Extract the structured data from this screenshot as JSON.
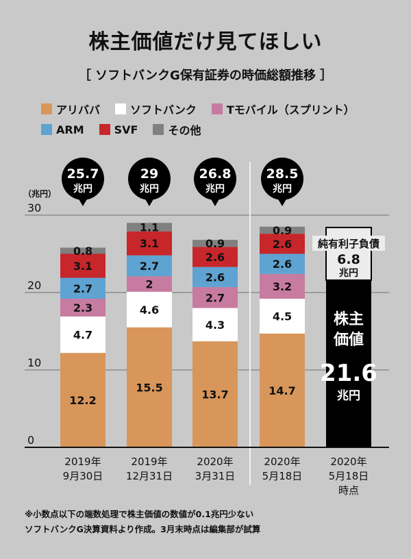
{
  "title": "株主価値だけ見てほしい",
  "subtitle": "［ ソフトバンクG保有証券の時価総額推移 ］",
  "legend": [
    {
      "label": "アリババ",
      "color": "#d9965a"
    },
    {
      "label": "ソフトバンク",
      "color": "#ffffff"
    },
    {
      "label": "Tモバイル（スプリント）",
      "color": "#c87ba0"
    },
    {
      "label": "ARM",
      "color": "#5ea3d2"
    },
    {
      "label": "SVF",
      "color": "#c7262b"
    },
    {
      "label": "その他",
      "color": "#808080"
    }
  ],
  "chart_data": {
    "type": "bar",
    "stacked": true,
    "ylabel": "（兆円）",
    "ylim": [
      0,
      30
    ],
    "yticks": [
      "0",
      "10",
      "20",
      "30"
    ],
    "categories": [
      [
        "2019年",
        "9月30日"
      ],
      [
        "2019年",
        "12月31日"
      ],
      [
        "2020年",
        "3月31日"
      ],
      [
        "2020年",
        "5月18日"
      ]
    ],
    "series": [
      {
        "name": "アリババ",
        "values": [
          12.2,
          15.5,
          13.7,
          14.7
        ]
      },
      {
        "name": "ソフトバンク",
        "values": [
          4.7,
          4.6,
          4.3,
          4.5
        ]
      },
      {
        "name": "Tモバイル（スプリント）",
        "values": [
          2.3,
          2,
          2.7,
          3.2
        ]
      },
      {
        "name": "ARM",
        "values": [
          2.7,
          2.7,
          2.6,
          2.6
        ]
      },
      {
        "name": "SVF",
        "values": [
          3.1,
          3.1,
          2.6,
          2.6
        ]
      },
      {
        "name": "その他",
        "values": [
          0.8,
          1.1,
          0.9,
          0.9
        ]
      }
    ],
    "value_labels": [
      [
        "12.2",
        "4.7",
        "2.3",
        "2.7",
        "3.1",
        "0.8"
      ],
      [
        "15.5",
        "4.6",
        "2",
        "2.7",
        "3.1",
        "1.1"
      ],
      [
        "13.7",
        "4.3",
        "2.7",
        "2.6",
        "2.6",
        "0.9"
      ],
      [
        "14.7",
        "4.5",
        "3.2",
        "2.6",
        "2.6",
        "0.9"
      ]
    ],
    "totals": [
      {
        "value": "25.7",
        "unit": "兆円"
      },
      {
        "value": "29",
        "unit": "兆円"
      },
      {
        "value": "26.8",
        "unit": "兆円"
      },
      {
        "value": "28.5",
        "unit": "兆円"
      }
    ],
    "extra_bar": {
      "category": [
        "2020年",
        "5月18日",
        "時点"
      ],
      "total": 28.4,
      "debt": {
        "label": "純有利子負債",
        "value": "6.8",
        "unit": "兆円",
        "amount": 6.8
      },
      "equity": {
        "label1": "株主",
        "label2": "価値",
        "value": "21.6",
        "unit": "兆円",
        "amount": 21.6
      }
    }
  },
  "footnote": [
    "※小数点以下の端数処理で株主価値の数値が0.1兆円少ない",
    "ソフトバンクG決算資料より作成。3月末時点は編集部が試算"
  ]
}
